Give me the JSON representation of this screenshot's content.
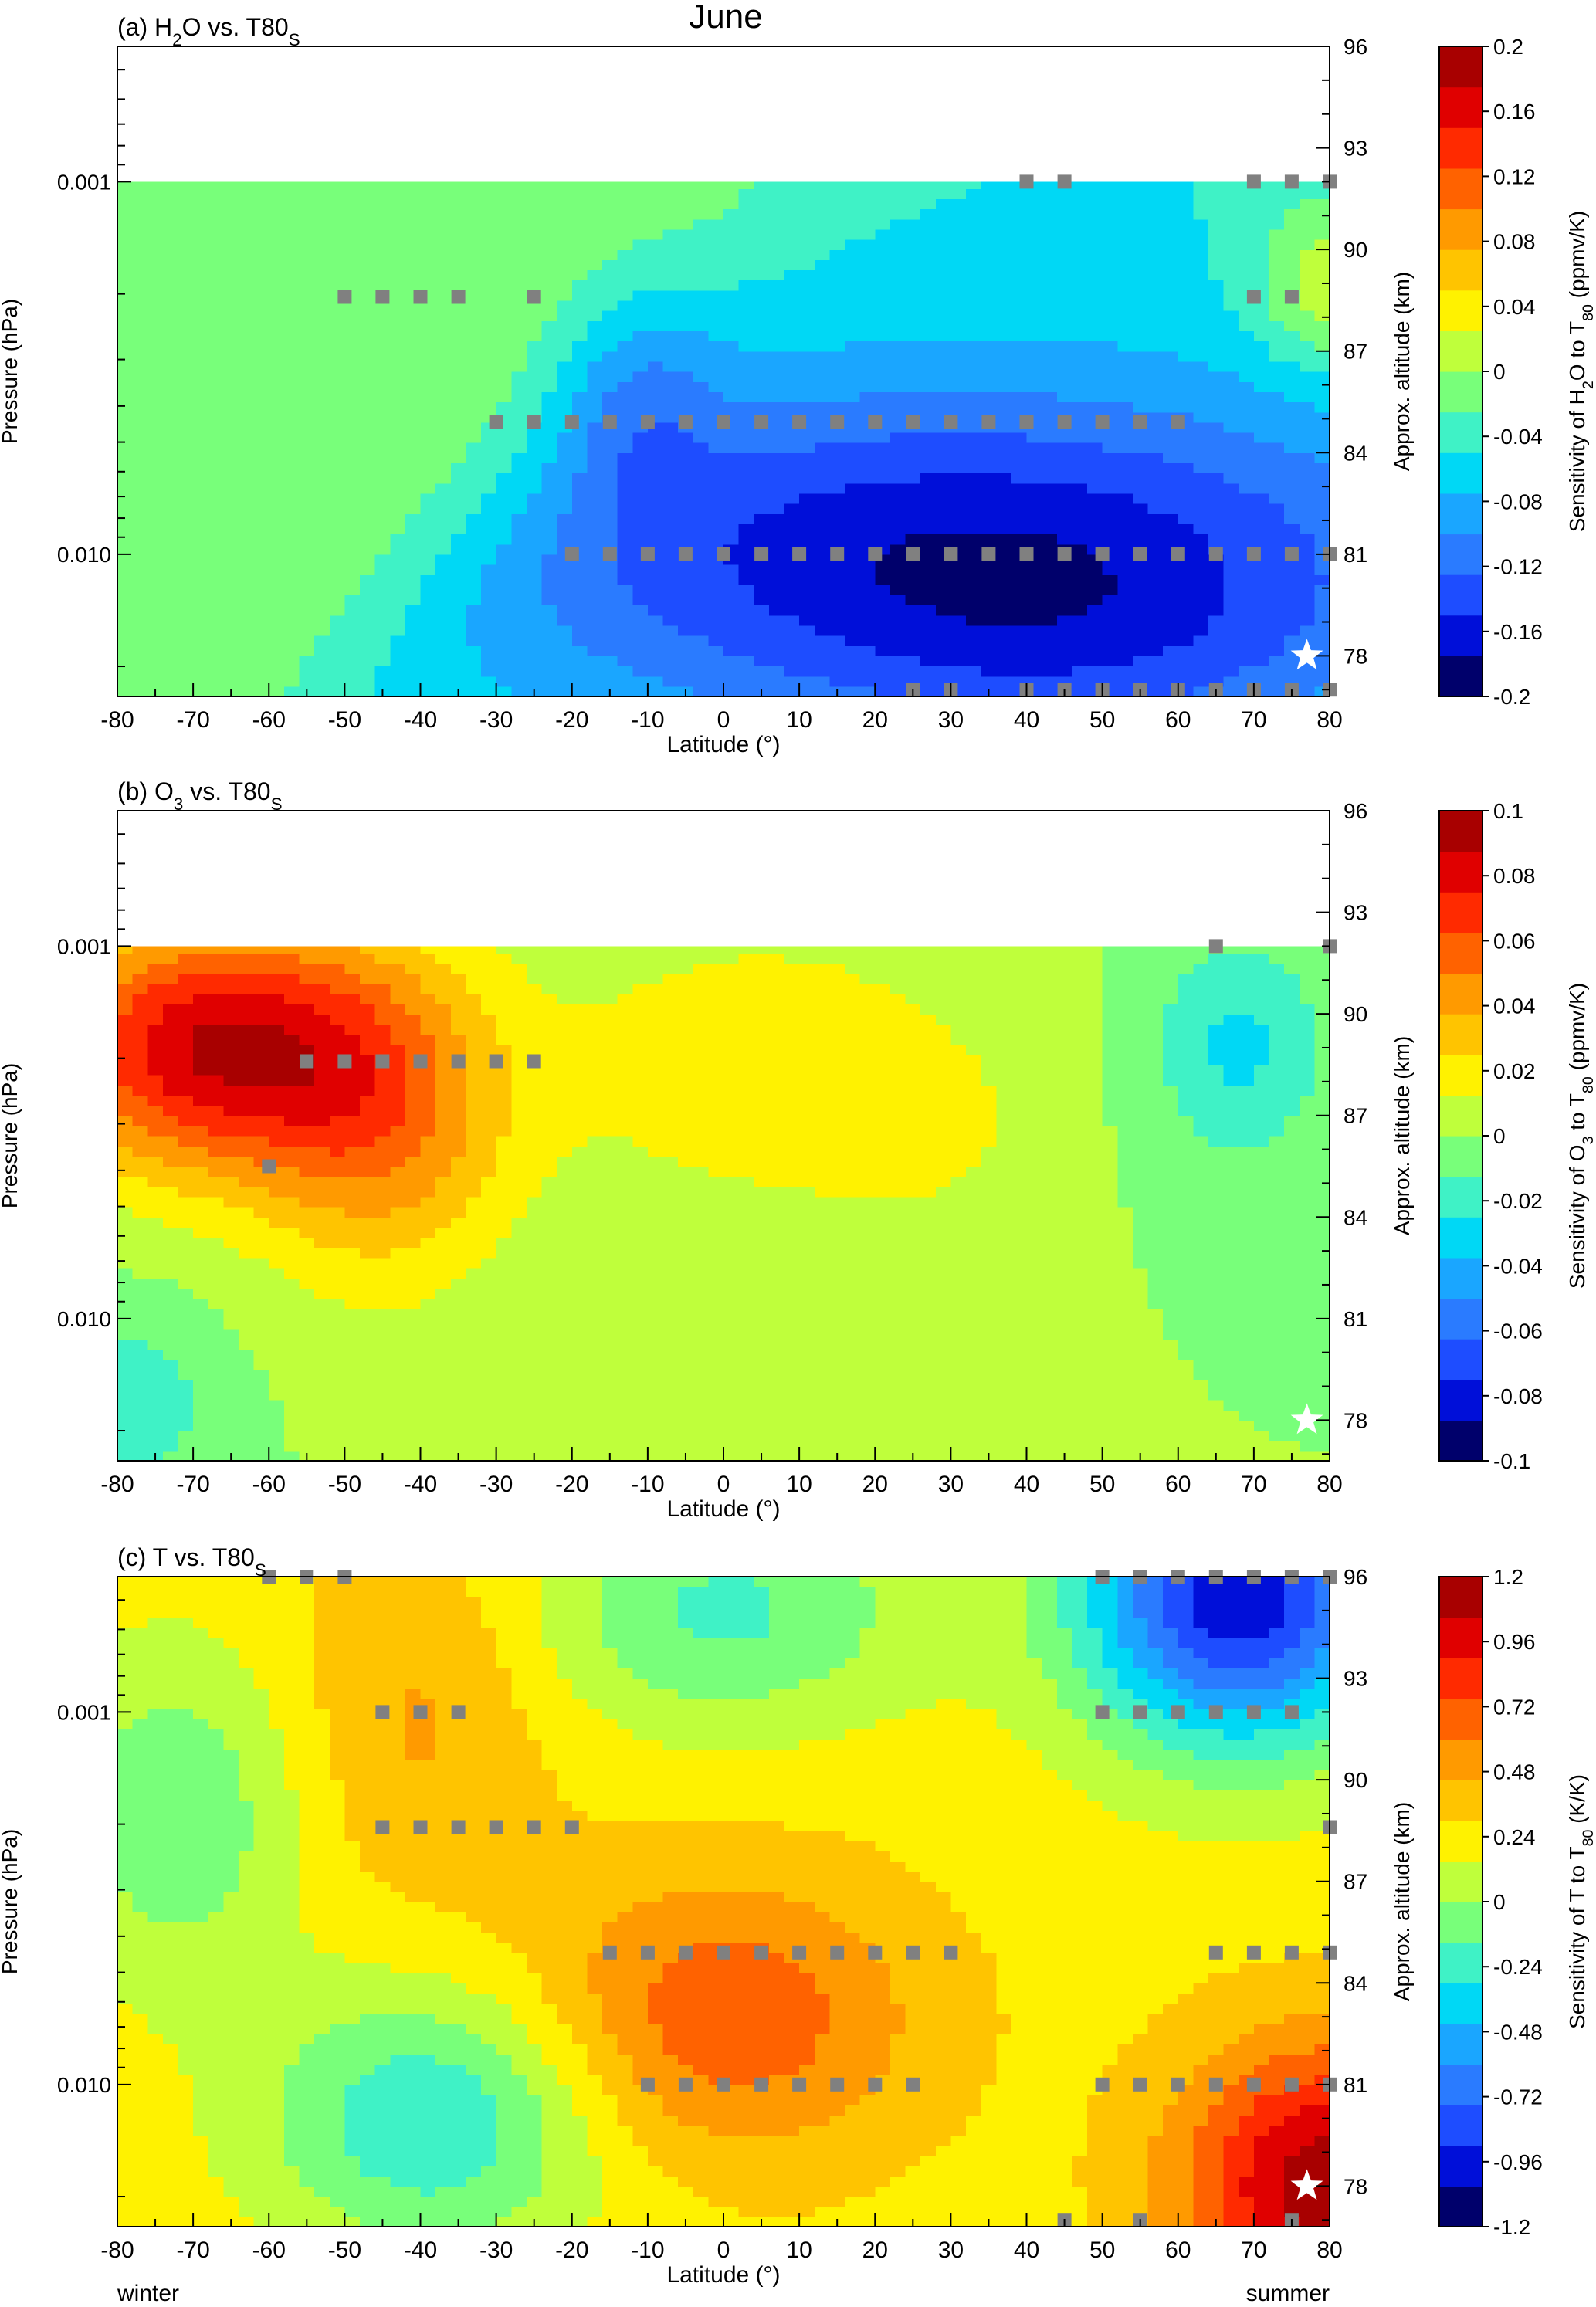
{
  "figure": {
    "title": "June",
    "footer_left": "winter",
    "footer_right": "summer"
  },
  "chart_data": [
    {
      "type": "heatmap",
      "panel_label": "(a) H",
      "panel_sub": "2",
      "panel_mid": "O vs. T80",
      "panel_sub2": "S",
      "xlabel": "Latitude (°)",
      "ylabel": "Pressure (hPa)",
      "y2label": "Approx. altitude (km)",
      "x_ticks": [
        -80,
        -70,
        -60,
        -50,
        -40,
        -30,
        -20,
        -10,
        0,
        10,
        20,
        30,
        40,
        50,
        60,
        70,
        80
      ],
      "x_tick_labels": [
        "-80",
        "-70",
        "-60",
        "-50",
        "-40",
        "-30",
        "-20",
        "-10",
        "0",
        "10",
        "20",
        "30",
        "40",
        "50",
        "60",
        "70",
        "80"
      ],
      "xlim": [
        -80,
        80
      ],
      "y_tick_labels": [
        "0.001",
        "0.010"
      ],
      "y2_ticks": [
        96,
        93,
        90,
        87,
        84,
        81,
        78
      ],
      "y2_tick_labels": [
        "96",
        "93",
        "90",
        "87",
        "84",
        "81",
        "78"
      ],
      "data_top_alt": 92.0,
      "colorbar": {
        "label_pre": "Sensitivity of H",
        "label_sub1": "2",
        "label_mid": "O to T",
        "label_sub2": "80",
        "label_post": " (ppmv/K)",
        "ticks": [
          "0.2",
          "0.16",
          "0.12",
          "0.08",
          "0.04",
          "0",
          "-0.04",
          "-0.08",
          "-0.12",
          "-0.16",
          "-0.2"
        ],
        "range": [
          -0.2,
          0.2
        ]
      },
      "significance_markers": [
        [
          40,
          92
        ],
        [
          45,
          92
        ],
        [
          70,
          92
        ],
        [
          75,
          92
        ],
        [
          80,
          92
        ],
        [
          -50,
          88.6
        ],
        [
          -45,
          88.6
        ],
        [
          -40,
          88.6
        ],
        [
          -35,
          88.6
        ],
        [
          -25,
          88.6
        ],
        [
          70,
          88.6
        ],
        [
          75,
          88.6
        ],
        [
          -30,
          84.9
        ],
        [
          -25,
          84.9
        ],
        [
          -20,
          84.9
        ],
        [
          -15,
          84.9
        ],
        [
          -10,
          84.9
        ],
        [
          -5,
          84.9
        ],
        [
          0,
          84.9
        ],
        [
          5,
          84.9
        ],
        [
          10,
          84.9
        ],
        [
          15,
          84.9
        ],
        [
          20,
          84.9
        ],
        [
          25,
          84.9
        ],
        [
          30,
          84.9
        ],
        [
          35,
          84.9
        ],
        [
          40,
          84.9
        ],
        [
          45,
          84.9
        ],
        [
          50,
          84.9
        ],
        [
          55,
          84.9
        ],
        [
          60,
          84.9
        ],
        [
          -20,
          81.0
        ],
        [
          -15,
          81.0
        ],
        [
          -10,
          81.0
        ],
        [
          -5,
          81.0
        ],
        [
          0,
          81.0
        ],
        [
          5,
          81.0
        ],
        [
          10,
          81.0
        ],
        [
          15,
          81.0
        ],
        [
          20,
          81.0
        ],
        [
          25,
          81.0
        ],
        [
          30,
          81.0
        ],
        [
          35,
          81.0
        ],
        [
          40,
          81.0
        ],
        [
          45,
          81.0
        ],
        [
          50,
          81.0
        ],
        [
          55,
          81.0
        ],
        [
          60,
          81.0
        ],
        [
          65,
          81.0
        ],
        [
          70,
          81.0
        ],
        [
          75,
          81.0
        ],
        [
          80,
          81.0
        ],
        [
          25,
          77.0
        ],
        [
          30,
          77.0
        ],
        [
          40,
          77.0
        ],
        [
          45,
          77.0
        ],
        [
          50,
          77.0
        ],
        [
          55,
          77.0
        ],
        [
          60,
          77.0
        ],
        [
          65,
          77.0
        ],
        [
          70,
          77.0
        ],
        [
          75,
          77.0
        ],
        [
          80,
          77.0
        ]
      ],
      "star": [
        77,
        78.0
      ]
    },
    {
      "type": "heatmap",
      "panel_label": "(b) O",
      "panel_sub": "3",
      "panel_mid": " vs. T80",
      "panel_sub2": "S",
      "xlabel": "Latitude (°)",
      "ylabel": "Pressure (hPa)",
      "y2label": "Approx. altitude (km)",
      "x_ticks": [
        -80,
        -70,
        -60,
        -50,
        -40,
        -30,
        -20,
        -10,
        0,
        10,
        20,
        30,
        40,
        50,
        60,
        70,
        80
      ],
      "x_tick_labels": [
        "-80",
        "-70",
        "-60",
        "-50",
        "-40",
        "-30",
        "-20",
        "-10",
        "0",
        "10",
        "20",
        "30",
        "40",
        "50",
        "60",
        "70",
        "80"
      ],
      "xlim": [
        -80,
        80
      ],
      "y_tick_labels": [
        "0.001",
        "0.010"
      ],
      "y2_ticks": [
        96,
        93,
        90,
        87,
        84,
        81,
        78
      ],
      "y2_tick_labels": [
        "96",
        "93",
        "90",
        "87",
        "84",
        "81",
        "78"
      ],
      "data_top_alt": 92.0,
      "colorbar": {
        "label_pre": "Sensitivity of O",
        "label_sub1": "3",
        "label_mid": " to T",
        "label_sub2": "80",
        "label_post": " (ppmv/K)",
        "ticks": [
          "0.1",
          "0.08",
          "0.06",
          "0.04",
          "0.02",
          "0",
          "-0.02",
          "-0.04",
          "-0.06",
          "-0.08",
          "-0.1"
        ],
        "range": [
          -0.1,
          0.1
        ]
      },
      "significance_markers": [
        [
          65,
          92
        ],
        [
          80,
          92
        ],
        [
          -55,
          88.6
        ],
        [
          -50,
          88.6
        ],
        [
          -45,
          88.6
        ],
        [
          -40,
          88.6
        ],
        [
          -35,
          88.6
        ],
        [
          -30,
          88.6
        ],
        [
          -25,
          88.6
        ],
        [
          -60,
          85.5
        ]
      ],
      "star": [
        77,
        78.0
      ]
    },
    {
      "type": "heatmap",
      "panel_label": "(c) T vs. T80",
      "panel_sub": "",
      "panel_mid": "",
      "panel_sub2": "S",
      "xlabel": "Latitude (°)",
      "ylabel": "Pressure (hPa)",
      "y2label": "Approx. altitude (km)",
      "x_ticks": [
        -80,
        -70,
        -60,
        -50,
        -40,
        -30,
        -20,
        -10,
        0,
        10,
        20,
        30,
        40,
        50,
        60,
        70,
        80
      ],
      "x_tick_labels": [
        "-80",
        "-70",
        "-60",
        "-50",
        "-40",
        "-30",
        "-20",
        "-10",
        "0",
        "10",
        "20",
        "30",
        "40",
        "50",
        "60",
        "70",
        "80"
      ],
      "xlim": [
        -80,
        80
      ],
      "y_tick_labels": [
        "0.001",
        "0.010"
      ],
      "y2_ticks": [
        96,
        93,
        90,
        87,
        84,
        81,
        78
      ],
      "y2_tick_labels": [
        "96",
        "93",
        "90",
        "87",
        "84",
        "81",
        "78"
      ],
      "data_top_alt": 96.0,
      "colorbar": {
        "label_pre": "Sensitivity of T to T",
        "label_sub1": "",
        "label_mid": "",
        "label_sub2": "80",
        "label_post": " (K/K)",
        "ticks": [
          "1.2",
          "0.96",
          "0.72",
          "0.48",
          "0.24",
          "0",
          "-0.24",
          "-0.48",
          "-0.72",
          "-0.96",
          "-1.2"
        ],
        "range": [
          -1.2,
          1.2
        ]
      },
      "significance_markers": [
        [
          -60,
          96
        ],
        [
          -55,
          96
        ],
        [
          -50,
          96
        ],
        [
          50,
          96
        ],
        [
          55,
          96
        ],
        [
          60,
          96
        ],
        [
          65,
          96
        ],
        [
          70,
          96
        ],
        [
          75,
          96
        ],
        [
          80,
          96
        ],
        [
          -45,
          92
        ],
        [
          -40,
          92
        ],
        [
          -35,
          92
        ],
        [
          50,
          92
        ],
        [
          55,
          92
        ],
        [
          60,
          92
        ],
        [
          65,
          92
        ],
        [
          70,
          92
        ],
        [
          75,
          92
        ],
        [
          -45,
          88.6
        ],
        [
          -40,
          88.6
        ],
        [
          -35,
          88.6
        ],
        [
          -30,
          88.6
        ],
        [
          -25,
          88.6
        ],
        [
          -20,
          88.6
        ],
        [
          80,
          88.6
        ],
        [
          -15,
          84.9
        ],
        [
          -10,
          84.9
        ],
        [
          -5,
          84.9
        ],
        [
          0,
          84.9
        ],
        [
          5,
          84.9
        ],
        [
          10,
          84.9
        ],
        [
          15,
          84.9
        ],
        [
          20,
          84.9
        ],
        [
          25,
          84.9
        ],
        [
          30,
          84.9
        ],
        [
          65,
          84.9
        ],
        [
          70,
          84.9
        ],
        [
          75,
          84.9
        ],
        [
          80,
          84.9
        ],
        [
          -10,
          81.0
        ],
        [
          -5,
          81.0
        ],
        [
          0,
          81.0
        ],
        [
          5,
          81.0
        ],
        [
          10,
          81.0
        ],
        [
          15,
          81.0
        ],
        [
          20,
          81.0
        ],
        [
          25,
          81.0
        ],
        [
          50,
          81.0
        ],
        [
          55,
          81.0
        ],
        [
          60,
          81.0
        ],
        [
          65,
          81.0
        ],
        [
          70,
          81.0
        ],
        [
          75,
          81.0
        ],
        [
          80,
          81.0
        ],
        [
          45,
          77.0
        ],
        [
          55,
          77.0
        ],
        [
          75,
          77.0
        ]
      ],
      "star": [
        77,
        78.0
      ]
    }
  ],
  "colors": {
    "scale": [
      "#00006b",
      "#000fd9",
      "#1e4dff",
      "#2a7bff",
      "#1aa6ff",
      "#00d8f5",
      "#3ff2c6",
      "#78ff7a",
      "#bfff3b",
      "#fff200",
      "#ffc400",
      "#ff9a00",
      "#ff6200",
      "#ff2a00",
      "#e00000",
      "#a80000"
    ],
    "marker": "#808080",
    "nodata": "#ffffff"
  }
}
